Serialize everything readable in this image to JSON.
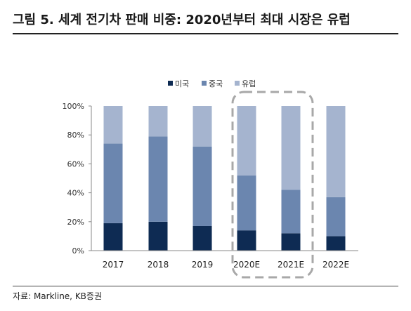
{
  "title": "그림 5. 세계 전기차 판매 비중: 2020년부터 최대 시장은 유럽",
  "source": "자료: Markline, KB증권",
  "colors": {
    "us": "#0e2b53",
    "china": "#6b86af",
    "europe": "#a5b4cf",
    "highlight_box": "#a8a8a8"
  },
  "chart_data": {
    "type": "bar",
    "stacked": true,
    "categories": [
      "2017",
      "2018",
      "2019",
      "2020E",
      "2021E",
      "2022E"
    ],
    "series": [
      {
        "name": "미국",
        "values": [
          19,
          20,
          17,
          14,
          12,
          10
        ]
      },
      {
        "name": "중국",
        "values": [
          55,
          59,
          55,
          38,
          30,
          27
        ]
      },
      {
        "name": "유럽",
        "values": [
          26,
          21,
          28,
          48,
          58,
          63
        ]
      }
    ],
    "y_ticks": [
      "0%",
      "20%",
      "40%",
      "60%",
      "80%",
      "100%"
    ],
    "ylim": [
      0,
      100
    ],
    "legend_position": "top-center",
    "grid": false,
    "highlight": "dashed rounded box around 2020E and 2021E"
  }
}
